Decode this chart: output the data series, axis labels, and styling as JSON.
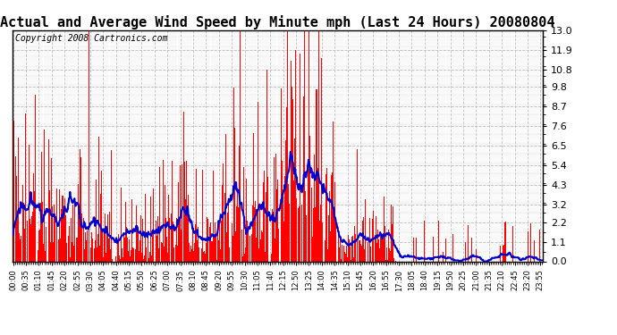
{
  "title": "Actual and Average Wind Speed by Minute mph (Last 24 Hours) 20080804",
  "copyright": "Copyright 2008 Cartronics.com",
  "yticks": [
    0.0,
    1.1,
    2.2,
    3.2,
    4.3,
    5.4,
    6.5,
    7.6,
    8.7,
    9.8,
    10.8,
    11.9,
    13.0
  ],
  "ylim": [
    0.0,
    13.0
  ],
  "bar_color": "#FF0000",
  "line_color": "#0000CC",
  "bg_color": "#FFFFFF",
  "grid_color": "#BBBBBB",
  "title_fontsize": 11,
  "copyright_fontsize": 7,
  "tick_label_fontsize": 6,
  "ytick_fontsize": 8,
  "n_minutes": 1440,
  "label_step": 35
}
